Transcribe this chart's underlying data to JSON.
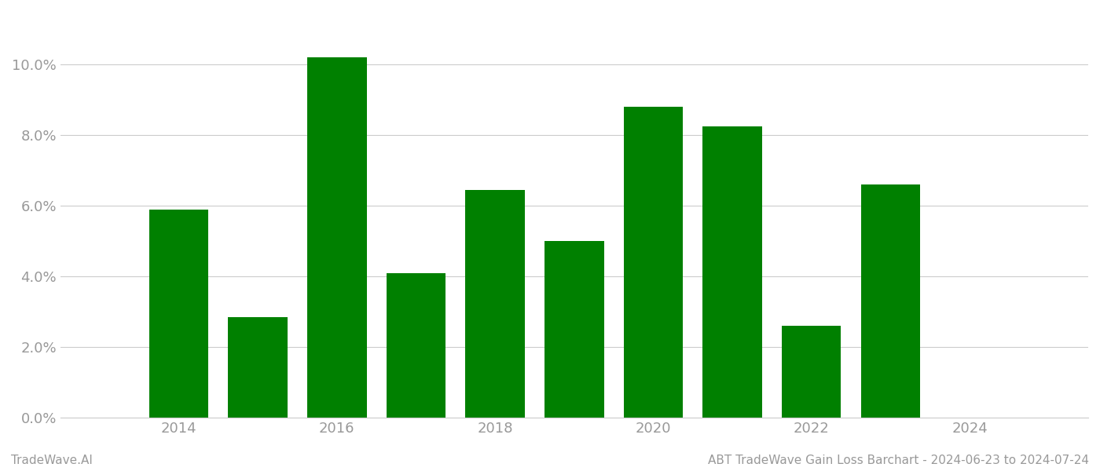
{
  "years": [
    2014,
    2015,
    2016,
    2017,
    2018,
    2019,
    2020,
    2021,
    2022,
    2023
  ],
  "values": [
    0.059,
    0.0285,
    0.102,
    0.041,
    0.0645,
    0.05,
    0.088,
    0.0825,
    0.026,
    0.066
  ],
  "bar_color": "#008000",
  "background_color": "#ffffff",
  "ylim": [
    0,
    0.115
  ],
  "yticks": [
    0.0,
    0.02,
    0.04,
    0.06,
    0.08,
    0.1
  ],
  "xtick_labels": [
    "2014",
    "2016",
    "2018",
    "2020",
    "2022",
    "2024"
  ],
  "xtick_positions": [
    2014,
    2016,
    2018,
    2020,
    2022,
    2024
  ],
  "xlim": [
    2012.5,
    2025.5
  ],
  "footer_left": "TradeWave.AI",
  "footer_right": "ABT TradeWave Gain Loss Barchart - 2024-06-23 to 2024-07-24",
  "grid_color": "#cccccc",
  "tick_label_color": "#999999",
  "footer_color": "#999999",
  "bar_width": 0.75,
  "tick_fontsize": 13,
  "footer_fontsize": 11
}
